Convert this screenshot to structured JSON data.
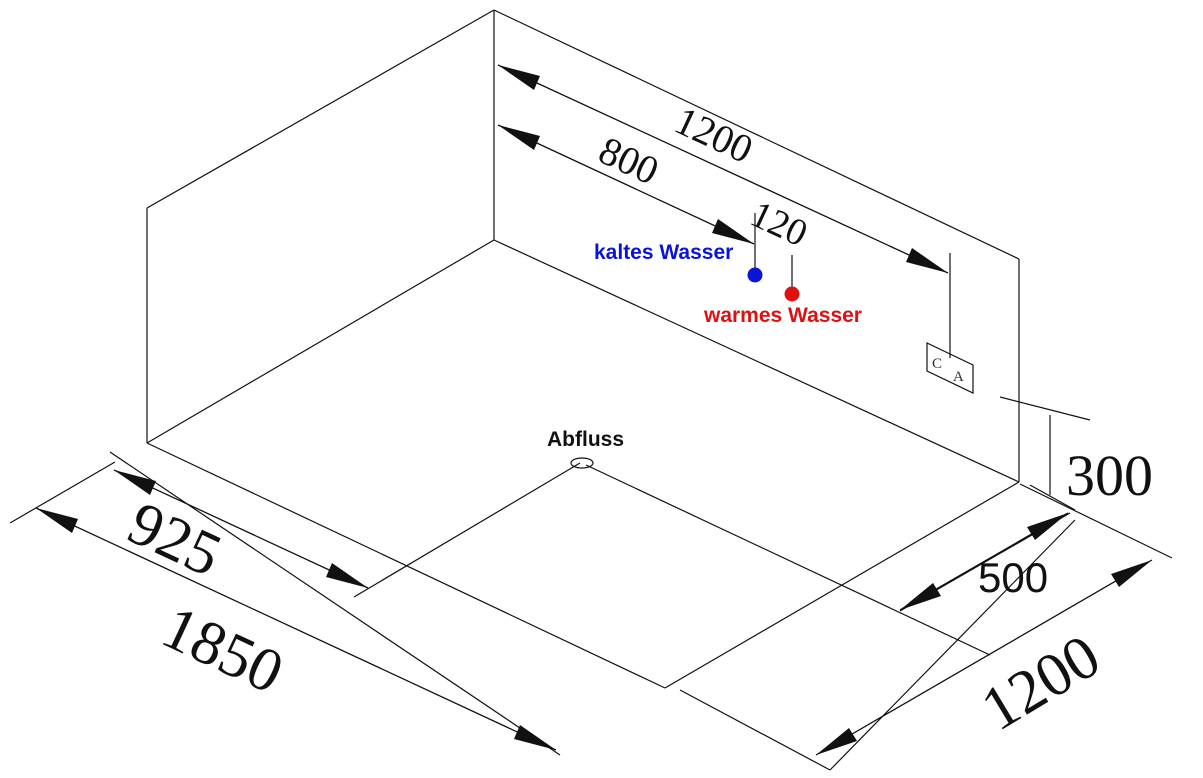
{
  "labels": {
    "cold_water": "kaltes Wasser",
    "warm_water": "warmes Wasser",
    "drain": "Abfluss"
  },
  "dimensions": {
    "wall_length": "1200",
    "cold_offset": "800",
    "inlet_spacing": "120",
    "wall_height": "300",
    "drain_from_wall": "500",
    "depth": "1200",
    "half_width": "925",
    "width": "1850"
  },
  "marker": {
    "letter_c": "C",
    "letter_a": "A"
  },
  "colors": {
    "cold": "#0a14d6",
    "warm": "#dd1111",
    "lines": "#111111"
  }
}
